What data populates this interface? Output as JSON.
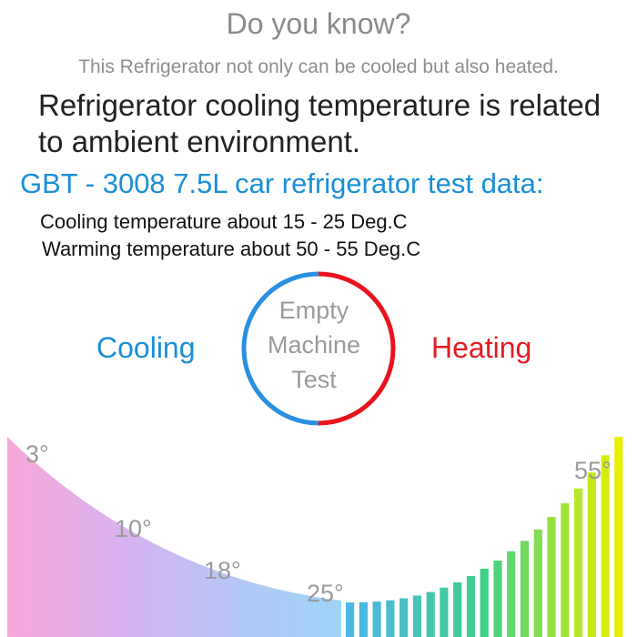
{
  "header": {
    "title": "Do you know?",
    "subtitle": "This Refrigerator not only can be cooled but also heated."
  },
  "headline": {
    "line1": "Refrigerator cooling temperature is related",
    "line2": "to ambient environment."
  },
  "test": {
    "title": "GBT - 3008 7.5L car refrigerator test data:",
    "cooling": "Cooling temperature about 15 - 25 Deg.C",
    "warming": "Warming temperature about 50 - 55 Deg.C"
  },
  "modes": {
    "cooling": "Cooling",
    "heating": "Heating",
    "center": "Empty Machine Test"
  },
  "colors": {
    "cool": "#1a8fd6",
    "heat": "#e31b23",
    "circle_cool": "#2a8fe0",
    "circle_heat": "#e8141e"
  },
  "temperatures": {
    "cooling_points": [
      "3°",
      "10°",
      "18°",
      "25°"
    ],
    "heating_end": "55°"
  },
  "bars": {
    "count": 21,
    "start_color": "#4fb6e6",
    "mid_color": "#3fcf88",
    "end_color": "#e8f000"
  }
}
